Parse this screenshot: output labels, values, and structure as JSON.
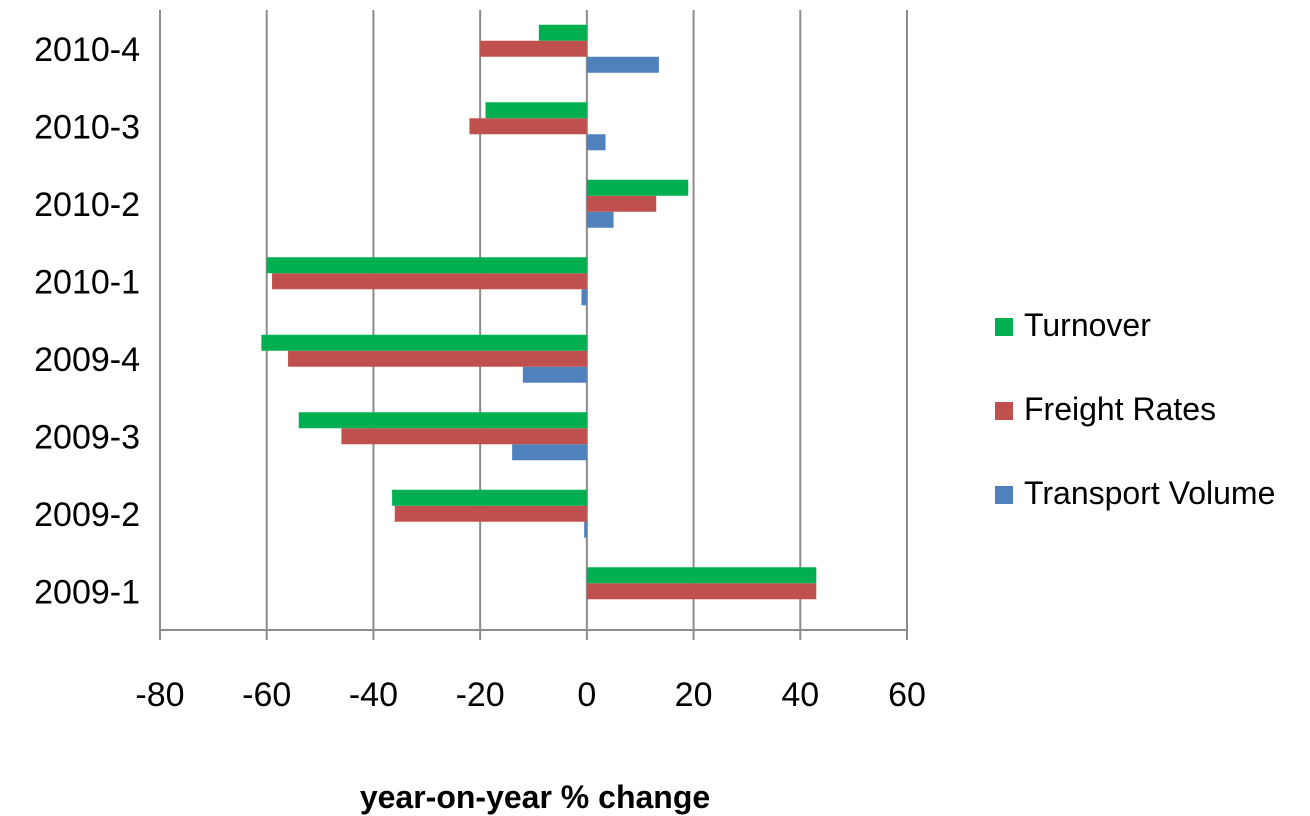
{
  "chart_data": {
    "type": "bar",
    "orientation": "horizontal",
    "categories": [
      "2009-1",
      "2009-2",
      "2009-3",
      "2009-4",
      "2010-1",
      "2010-2",
      "2010-3",
      "2010-4"
    ],
    "series": [
      {
        "name": "Transport Volume",
        "color": "#4F81BD",
        "values": [
          0,
          -0.5,
          -14,
          -12,
          -1,
          5,
          3.5,
          13.5
        ]
      },
      {
        "name": "Freight Rates",
        "color": "#C0504D",
        "values": [
          43,
          -36,
          -46,
          -56,
          -59,
          13,
          -22,
          -20
        ]
      },
      {
        "name": "Turnover",
        "color": "#00B050",
        "values": [
          43,
          -36.5,
          -54,
          -61,
          -60,
          19,
          -19,
          -9
        ]
      }
    ],
    "xlabel": "year-on-year % change",
    "ylabel": "",
    "xlim": [
      -80,
      60
    ],
    "xticks": [
      "-80",
      "-60",
      "-40",
      "-20",
      "0",
      "20",
      "40",
      "60"
    ],
    "grid": "vertical",
    "legend_position": "right",
    "legend_order": [
      "Turnover",
      "Freight Rates",
      "Transport Volume"
    ]
  }
}
